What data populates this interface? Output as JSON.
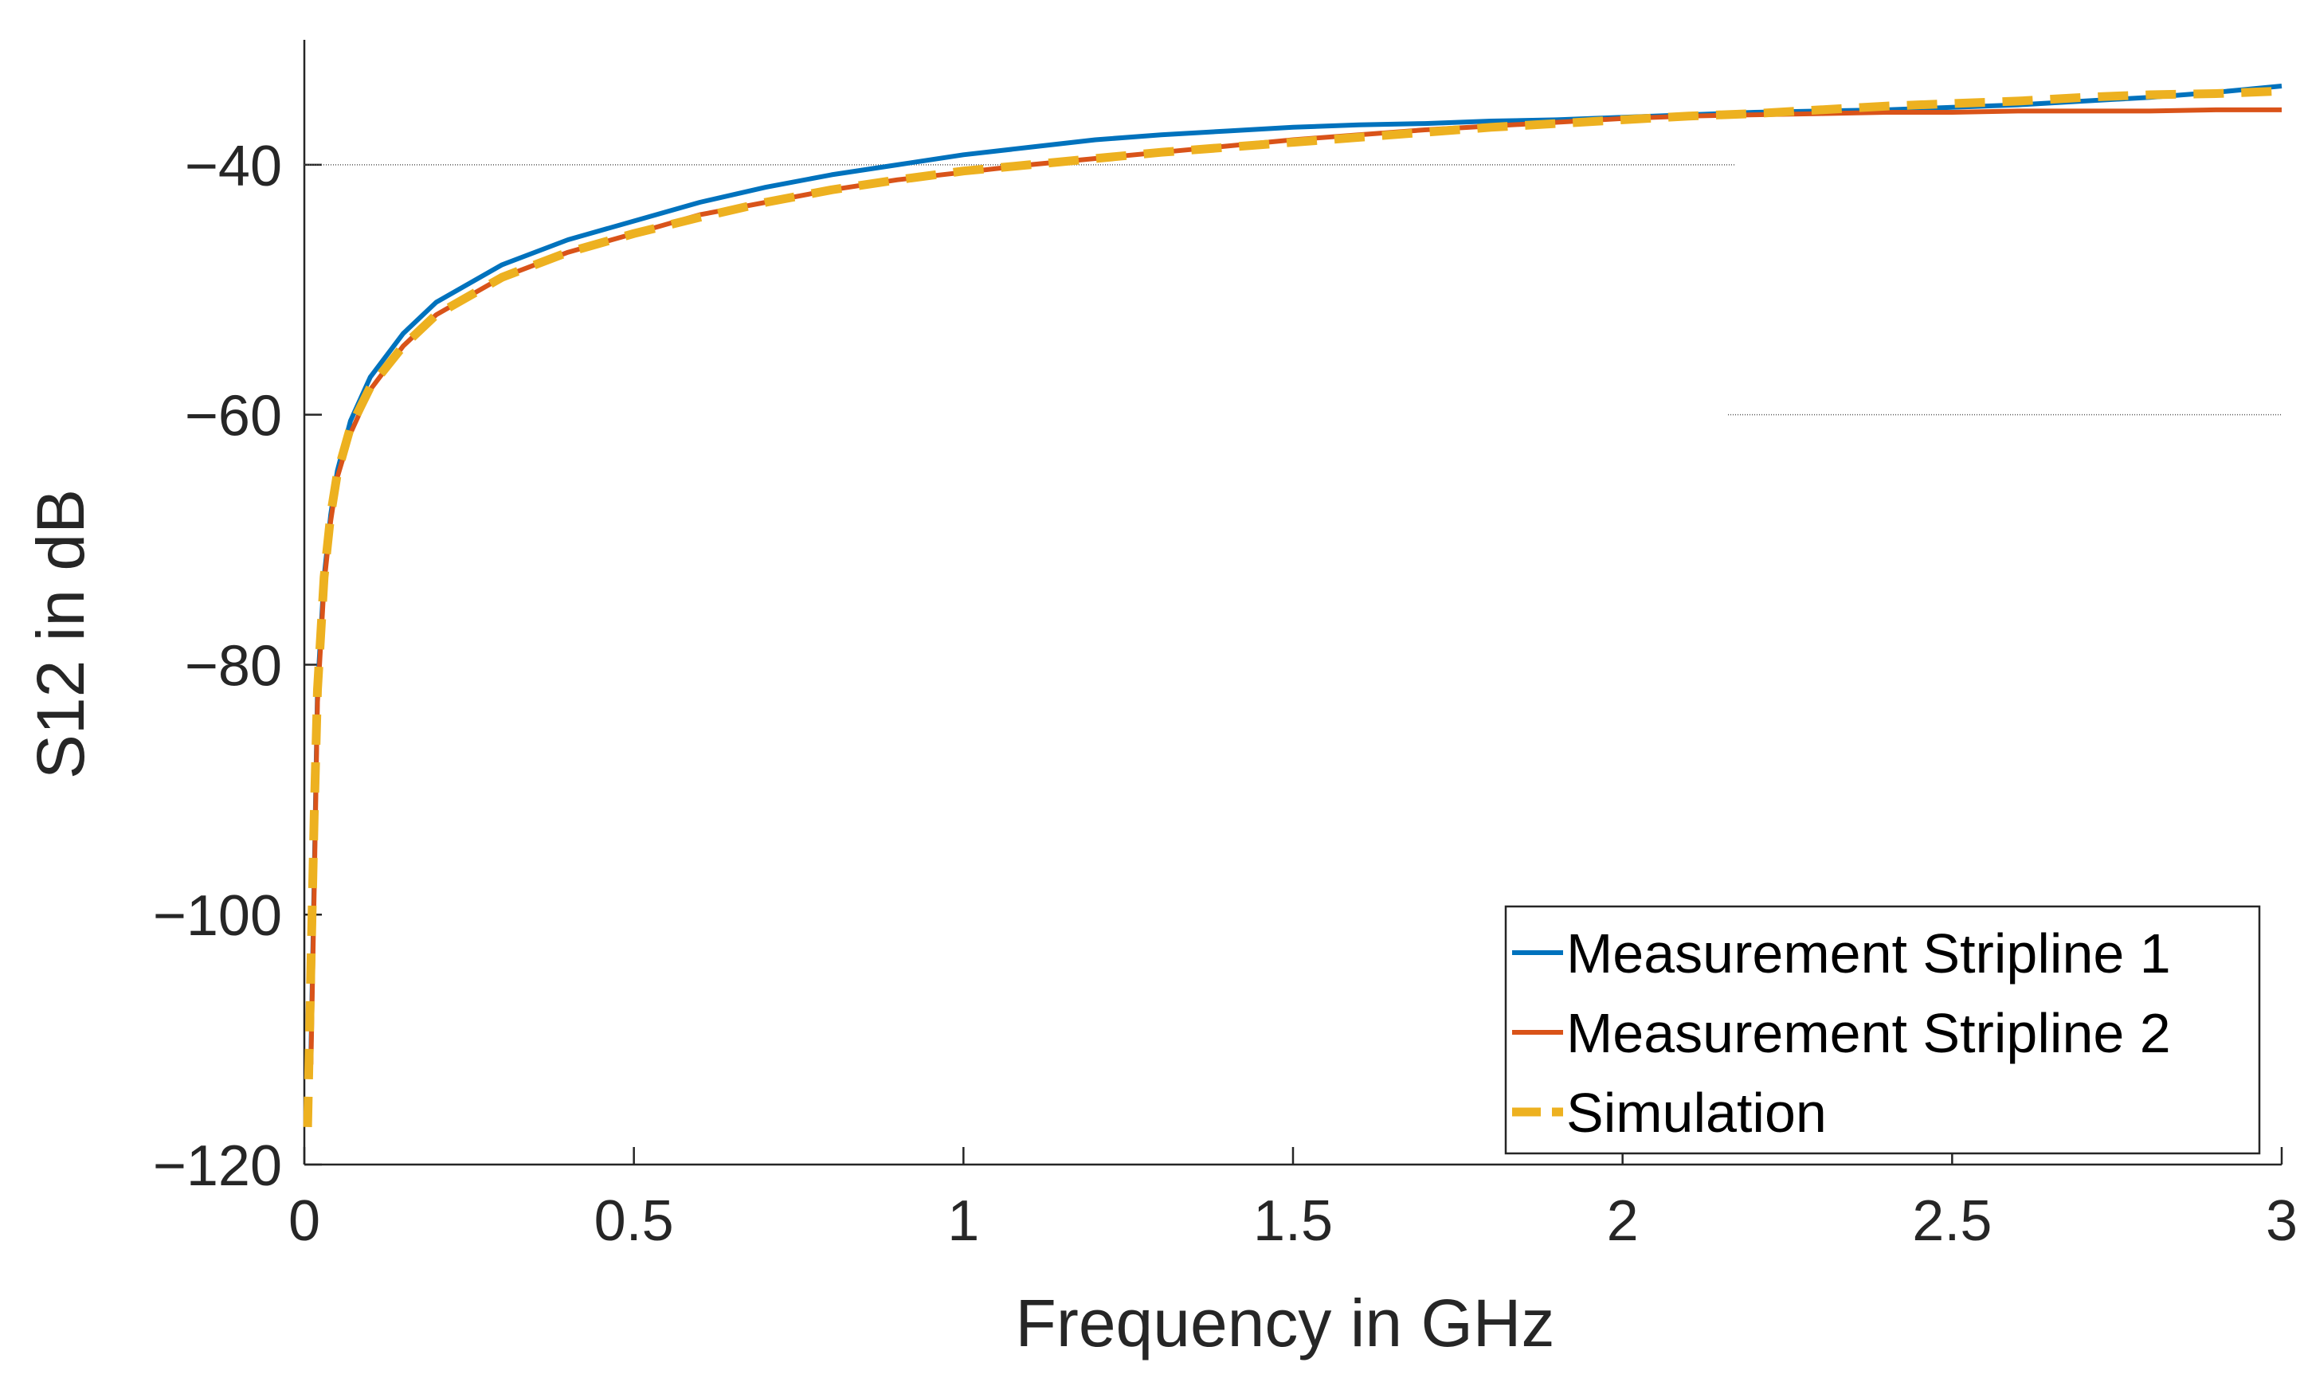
{
  "chart_data": {
    "type": "line",
    "title": "",
    "xlabel": "Frequency in GHz",
    "ylabel": "S12 in dB",
    "xlim": [
      0,
      3
    ],
    "ylim": [
      -120,
      -30
    ],
    "xticks": [
      0,
      0.5,
      1,
      1.5,
      2,
      2.5,
      3
    ],
    "xtick_labels": [
      "0",
      "0.5",
      "1",
      "1.5",
      "2",
      "2.5",
      "3"
    ],
    "yticks": [
      -120,
      -100,
      -80,
      -60,
      -40
    ],
    "ytick_labels": [
      "−120",
      "−100",
      "−80",
      "−60",
      "−40"
    ],
    "legend_position": "bottom-right",
    "series": [
      {
        "name": "Measurement Stripline 1",
        "color": "#0072BD",
        "style": "solid",
        "x": [
          0.01,
          0.015,
          0.02,
          0.03,
          0.04,
          0.05,
          0.07,
          0.1,
          0.15,
          0.2,
          0.3,
          0.4,
          0.5,
          0.6,
          0.7,
          0.8,
          0.9,
          1.0,
          1.1,
          1.2,
          1.3,
          1.4,
          1.5,
          1.6,
          1.7,
          1.8,
          1.9,
          2.0,
          2.1,
          2.2,
          2.3,
          2.4,
          2.5,
          2.6,
          2.7,
          2.8,
          2.9,
          3.0
        ],
        "y": [
          -111,
          -97,
          -82,
          -73,
          -68,
          -64.5,
          -60.5,
          -57,
          -53.5,
          -51,
          -48,
          -46,
          -44.5,
          -43,
          -41.8,
          -40.8,
          -40.0,
          -39.2,
          -38.6,
          -38.0,
          -37.6,
          -37.3,
          -37.0,
          -36.8,
          -36.7,
          -36.5,
          -36.4,
          -36.2,
          -36.0,
          -35.8,
          -35.7,
          -35.6,
          -35.4,
          -35.2,
          -34.9,
          -34.6,
          -34.2,
          -33.7
        ]
      },
      {
        "name": "Measurement Stripline 2",
        "color": "#D95319",
        "style": "solid",
        "x": [
          0.01,
          0.015,
          0.02,
          0.03,
          0.04,
          0.05,
          0.07,
          0.1,
          0.15,
          0.2,
          0.3,
          0.4,
          0.5,
          0.6,
          0.7,
          0.8,
          0.9,
          1.0,
          1.1,
          1.2,
          1.3,
          1.4,
          1.5,
          1.6,
          1.7,
          1.8,
          1.9,
          2.0,
          2.1,
          2.2,
          2.3,
          2.4,
          2.5,
          2.6,
          2.7,
          2.8,
          2.9,
          3.0
        ],
        "y": [
          -112,
          -98,
          -83,
          -73.5,
          -68.5,
          -65,
          -61.5,
          -58,
          -54.5,
          -52,
          -49,
          -47,
          -45.5,
          -44,
          -43,
          -42,
          -41.2,
          -40.6,
          -40.0,
          -39.5,
          -39.0,
          -38.5,
          -38.0,
          -37.6,
          -37.2,
          -36.9,
          -36.6,
          -36.3,
          -36.1,
          -36.0,
          -35.9,
          -35.8,
          -35.8,
          -35.7,
          -35.7,
          -35.7,
          -35.6,
          -35.6
        ]
      },
      {
        "name": "Simulation",
        "color": "#EDB120",
        "style": "dashed",
        "x": [
          0.005,
          0.01,
          0.015,
          0.02,
          0.03,
          0.04,
          0.05,
          0.07,
          0.1,
          0.15,
          0.2,
          0.3,
          0.4,
          0.5,
          0.6,
          0.7,
          0.8,
          0.9,
          1.0,
          1.1,
          1.2,
          1.3,
          1.4,
          1.5,
          1.6,
          1.7,
          1.8,
          1.9,
          2.0,
          2.1,
          2.2,
          2.3,
          2.4,
          2.5,
          2.6,
          2.7,
          2.8,
          2.9,
          3.0
        ],
        "y": [
          -117,
          -104,
          -92,
          -82,
          -73,
          -68,
          -64.7,
          -61,
          -57.8,
          -54.5,
          -52,
          -49,
          -47,
          -45.5,
          -44.2,
          -43,
          -42,
          -41.2,
          -40.5,
          -40.0,
          -39.5,
          -39.0,
          -38.6,
          -38.2,
          -37.8,
          -37.4,
          -37.0,
          -36.7,
          -36.4,
          -36.1,
          -35.9,
          -35.6,
          -35.3,
          -35.1,
          -34.9,
          -34.6,
          -34.4,
          -34.3,
          -34.1
        ]
      }
    ]
  }
}
